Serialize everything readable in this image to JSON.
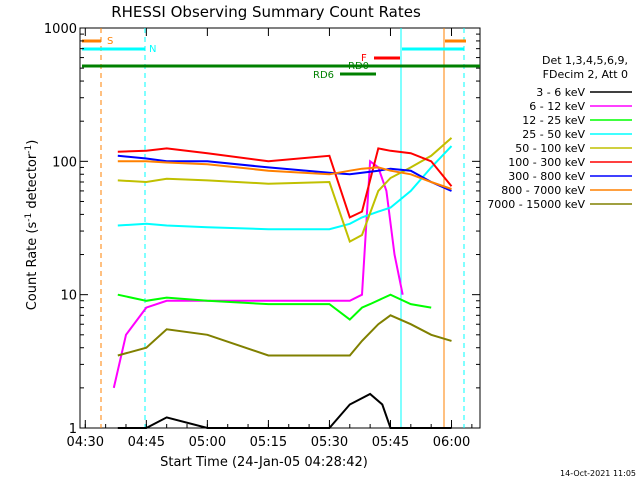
{
  "chart_data": {
    "type": "line",
    "title": "RHESSI Observing Summary Count Rates",
    "xlabel": "Start Time (24-Jan-05 04:28:42)",
    "ylabel": "Count Rate (s⁻¹ detector⁻¹)",
    "ylabel_base": "Count Rate (s",
    "ylabel_exp1": "-1",
    "ylabel_mid": " detector",
    "ylabel_exp2": "-1",
    "ylabel_end": ")",
    "y_scale": "log",
    "ylim": [
      1,
      1000
    ],
    "xlim": [
      "04:28:42",
      "06:07:00"
    ],
    "x_ticks": [
      "04:30",
      "04:45",
      "05:00",
      "05:15",
      "05:30",
      "05:45",
      "06:00"
    ],
    "y_ticks": [
      "1",
      "10",
      "100",
      "1000"
    ],
    "legend_header": [
      "Det 1,3,4,5,6,9,",
      "FDecim 2, Att 0"
    ],
    "timestamp": "14-Oct-2021 11:05",
    "state_markers": [
      {
        "label": "S",
        "color": "#ff8000"
      },
      {
        "label": "N",
        "color": "#00ffff"
      },
      {
        "label": "F",
        "color": "#ff0000"
      },
      {
        "label": "RD0",
        "color": "#008000"
      },
      {
        "label": "RD6",
        "color": "#008000"
      }
    ],
    "series": [
      {
        "name": "3 - 6 keV",
        "color": "#000000",
        "x": [
          "04:38",
          "04:40",
          "04:45",
          "04:50",
          "05:00",
          "05:15",
          "05:30",
          "05:35",
          "05:40",
          "05:43",
          "05:45",
          "05:50",
          "05:55",
          "06:00"
        ],
        "y": [
          1,
          1,
          1,
          1.2,
          1,
          1,
          1,
          1.5,
          1.8,
          1.5,
          1,
          1,
          1,
          1
        ]
      },
      {
        "name": "6 - 12 keV",
        "color": "#ff00ff",
        "x": [
          "04:37",
          "04:40",
          "04:45",
          "04:50",
          "05:00",
          "05:15",
          "05:30",
          "05:35",
          "05:38",
          "05:40",
          "05:42",
          "05:44",
          "05:46",
          "05:48"
        ],
        "y": [
          2,
          5,
          8,
          9,
          9,
          9,
          9,
          9,
          10,
          100,
          90,
          60,
          20,
          10
        ]
      },
      {
        "name": "12 - 25 keV",
        "color": "#00ff00",
        "x": [
          "04:38",
          "04:45",
          "04:50",
          "05:00",
          "05:15",
          "05:30",
          "05:35",
          "05:38",
          "05:40",
          "05:45",
          "05:50",
          "05:55"
        ],
        "y": [
          10,
          9,
          9.5,
          9,
          8.5,
          8.5,
          6.5,
          8,
          8.5,
          10,
          8.5,
          8
        ]
      },
      {
        "name": "25 - 50 keV",
        "color": "#00ffff",
        "x": [
          "04:38",
          "04:45",
          "04:50",
          "05:00",
          "05:15",
          "05:30",
          "05:35",
          "05:38",
          "05:42",
          "05:45",
          "05:50",
          "05:55",
          "06:00"
        ],
        "y": [
          33,
          34,
          33,
          32,
          31,
          31,
          34,
          38,
          42,
          45,
          60,
          90,
          130
        ]
      },
      {
        "name": "50 - 100 keV",
        "color": "#c0c000",
        "x": [
          "04:38",
          "04:45",
          "04:50",
          "05:00",
          "05:15",
          "05:30",
          "05:35",
          "05:38",
          "05:42",
          "05:45",
          "05:50",
          "05:55",
          "06:00"
        ],
        "y": [
          72,
          70,
          74,
          72,
          68,
          70,
          25,
          28,
          60,
          75,
          90,
          110,
          150
        ]
      },
      {
        "name": "100 - 300 keV",
        "color": "#ff0000",
        "x": [
          "04:38",
          "04:45",
          "04:50",
          "05:00",
          "05:15",
          "05:30",
          "05:35",
          "05:38",
          "05:42",
          "05:45",
          "05:50",
          "05:55",
          "06:00"
        ],
        "y": [
          118,
          120,
          125,
          115,
          100,
          110,
          38,
          42,
          125,
          120,
          115,
          100,
          65
        ]
      },
      {
        "name": "300 - 800 keV",
        "color": "#0000ff",
        "x": [
          "04:38",
          "04:45",
          "04:50",
          "05:00",
          "05:15",
          "05:30",
          "05:35",
          "05:38",
          "05:42",
          "05:45",
          "05:50",
          "05:55",
          "06:00"
        ],
        "y": [
          110,
          105,
          100,
          100,
          90,
          82,
          80,
          82,
          85,
          88,
          85,
          70,
          60
        ]
      },
      {
        "name": "800 - 7000 keV",
        "color": "#ff8000",
        "x": [
          "04:38",
          "04:45",
          "04:50",
          "05:00",
          "05:15",
          "05:30",
          "05:35",
          "05:38",
          "05:42",
          "05:45",
          "05:50",
          "05:55",
          "06:00"
        ],
        "y": [
          100,
          100,
          98,
          95,
          85,
          80,
          85,
          88,
          90,
          85,
          80,
          70,
          62
        ]
      },
      {
        "name": "7000 - 15000 keV",
        "color": "#808000",
        "x": [
          "04:38",
          "04:45",
          "04:50",
          "05:00",
          "05:15",
          "05:30",
          "05:35",
          "05:38",
          "05:42",
          "05:45",
          "05:50",
          "05:55",
          "06:00"
        ],
        "y": [
          3.5,
          4,
          5.5,
          5,
          3.5,
          3.5,
          3.5,
          4.5,
          6,
          7,
          6,
          5,
          4.5
        ]
      }
    ]
  }
}
